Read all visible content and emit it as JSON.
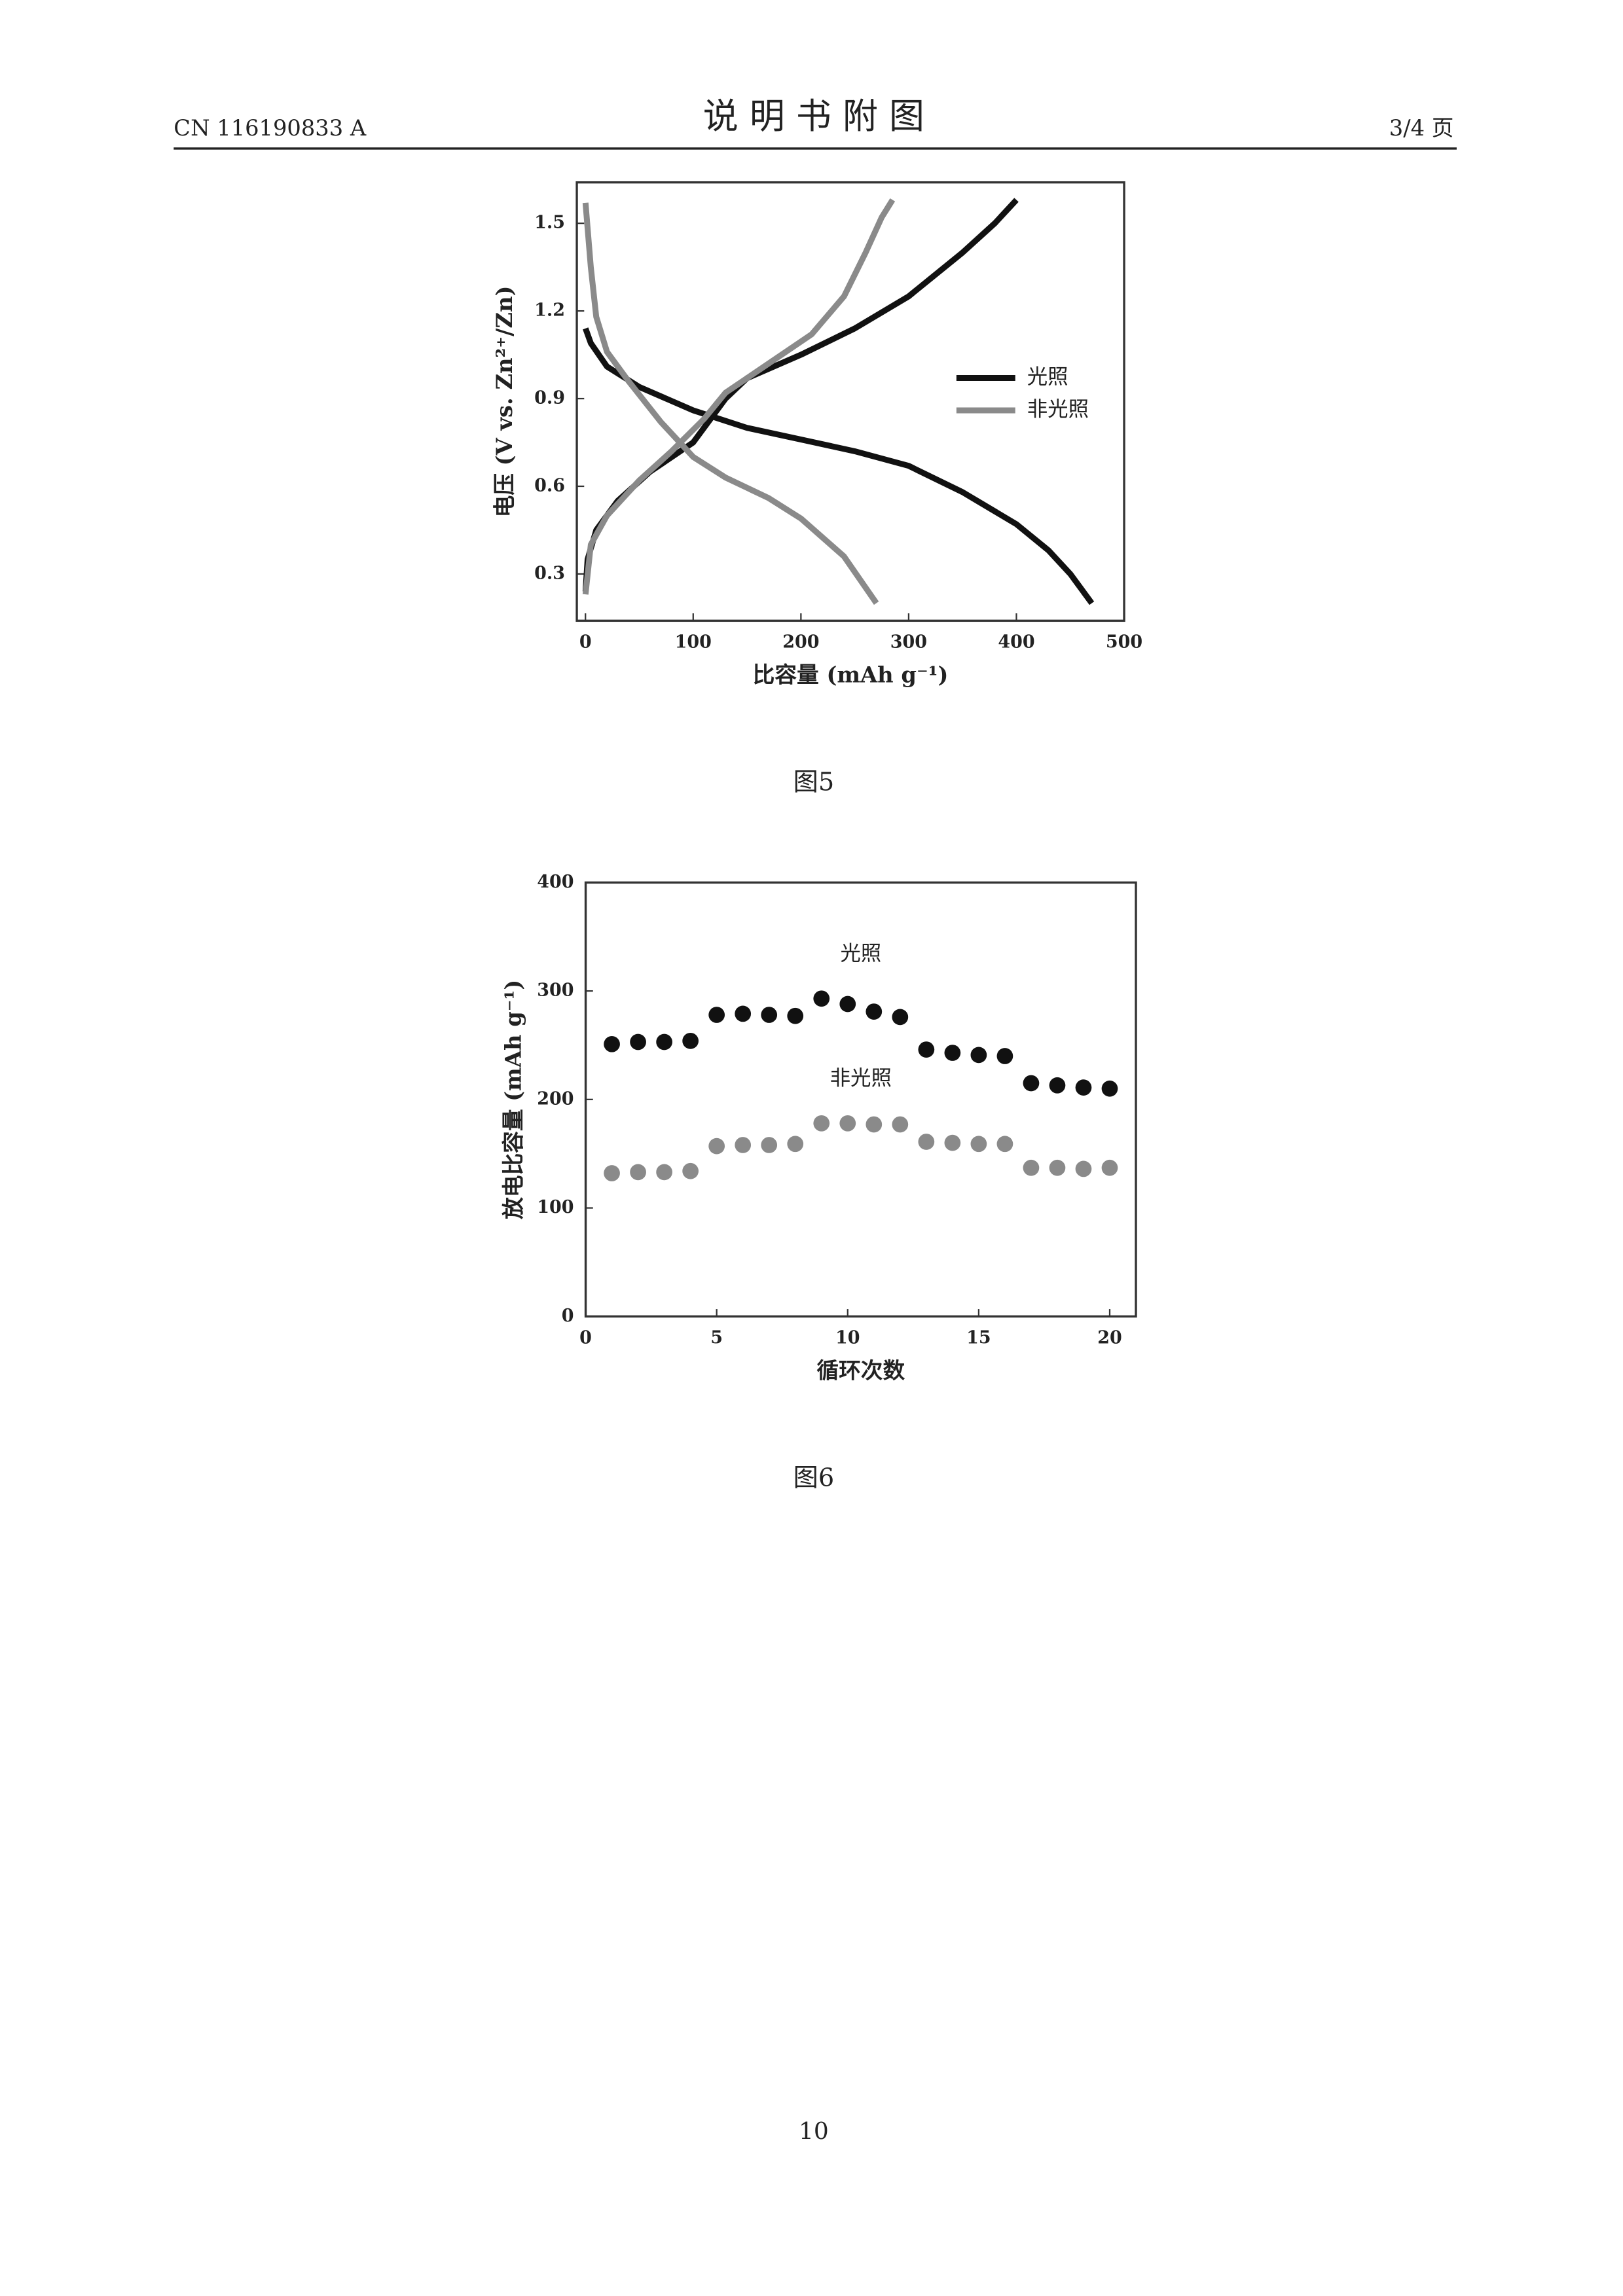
{
  "header": {
    "doc_id": "CN 116190833 A",
    "title": "说 明 书 附 图",
    "page": "3/4 页"
  },
  "chart_data": [
    {
      "type": "line",
      "caption": "图5",
      "xlabel": "比容量 (mAh g⁻¹)",
      "ylabel": "电压 (V vs. Zn²⁺/Zn)",
      "xlim": [
        -8,
        500
      ],
      "ylim": [
        0.14,
        1.64
      ],
      "xticks": [
        0,
        100,
        200,
        300,
        400,
        500
      ],
      "yticks": [
        0.3,
        0.6,
        0.9,
        1.2,
        1.5
      ],
      "legend": "right",
      "series": [
        {
          "name": "光照",
          "color": "#111111",
          "x": [
            0,
            5,
            20,
            50,
            100,
            150,
            200,
            250,
            300,
            350,
            400,
            430,
            450,
            470,
            null,
            0,
            2,
            10,
            30,
            60,
            100,
            130,
            150,
            200,
            250,
            300,
            350,
            380,
            400
          ],
          "values": [
            1.14,
            1.09,
            1.01,
            0.94,
            0.86,
            0.8,
            0.76,
            0.72,
            0.67,
            0.58,
            0.47,
            0.38,
            0.3,
            0.2,
            null,
            0.24,
            0.35,
            0.45,
            0.55,
            0.65,
            0.75,
            0.9,
            0.97,
            1.05,
            1.14,
            1.25,
            1.4,
            1.5,
            1.58
          ]
        },
        {
          "name": "非光照",
          "color": "#8a8a8a",
          "x": [
            0,
            5,
            10,
            20,
            40,
            70,
            100,
            130,
            170,
            200,
            240,
            270,
            null,
            0,
            5,
            20,
            50,
            80,
            110,
            130,
            170,
            210,
            240,
            260,
            275,
            285
          ],
          "values": [
            1.57,
            1.35,
            1.18,
            1.06,
            0.96,
            0.82,
            0.7,
            0.63,
            0.56,
            0.49,
            0.36,
            0.2,
            null,
            0.23,
            0.4,
            0.5,
            0.62,
            0.72,
            0.83,
            0.92,
            1.02,
            1.12,
            1.25,
            1.4,
            1.52,
            1.58
          ]
        }
      ]
    },
    {
      "type": "scatter",
      "caption": "图6",
      "xlabel": "循环次数",
      "ylabel": "放电比容量 (mAh g⁻¹)",
      "xlim": [
        0,
        21
      ],
      "ylim": [
        0,
        400
      ],
      "xticks": [
        0,
        5,
        10,
        15,
        20
      ],
      "yticks": [
        0,
        100,
        200,
        300,
        400
      ],
      "annotations": [
        "光照",
        "非光照"
      ],
      "series": [
        {
          "name": "光照",
          "color": "#111111",
          "x": [
            1,
            2,
            3,
            4,
            5,
            6,
            7,
            8,
            9,
            10,
            11,
            12,
            13,
            14,
            15,
            16,
            17,
            18,
            19,
            20
          ],
          "values": [
            251,
            253,
            253,
            254,
            278,
            279,
            278,
            277,
            293,
            288,
            281,
            276,
            246,
            243,
            241,
            240,
            215,
            213,
            211,
            210
          ]
        },
        {
          "name": "非光照",
          "color": "#8a8a8a",
          "x": [
            1,
            2,
            3,
            4,
            5,
            6,
            7,
            8,
            9,
            10,
            11,
            12,
            13,
            14,
            15,
            16,
            17,
            18,
            19,
            20
          ],
          "values": [
            132,
            133,
            133,
            134,
            157,
            158,
            158,
            159,
            178,
            178,
            177,
            177,
            161,
            160,
            159,
            159,
            137,
            137,
            136,
            137
          ]
        }
      ]
    }
  ],
  "footer": {
    "page_number": "10"
  }
}
